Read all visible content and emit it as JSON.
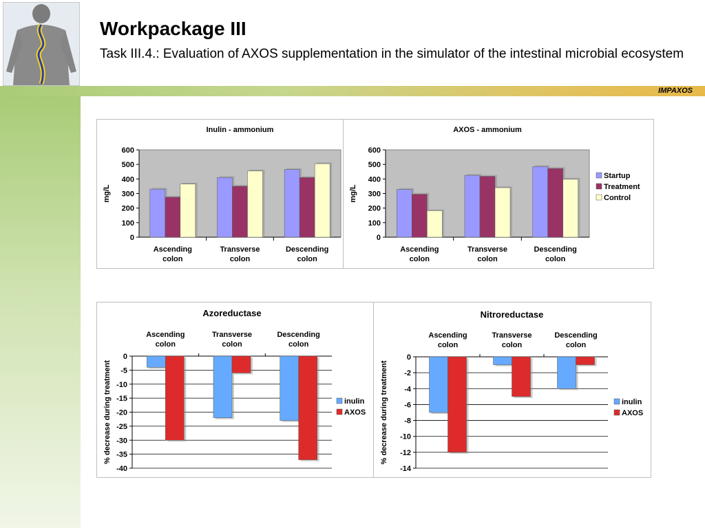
{
  "header": {
    "title": "Workpackage III",
    "subtitle": "Task III.4.: Evaluation of AXOS supplementation in the simulator of the intestinal microbial ecosystem",
    "bar_label": "IMPAXOS"
  },
  "colors": {
    "startup": "#9999ff",
    "treatment": "#993366",
    "control": "#ffffcc",
    "inulin": "#66aaff",
    "axos": "#dd2b2b",
    "plot_bg": "#c0c0c0",
    "bar_accent": "#a9cc77"
  },
  "chart_data": [
    {
      "type": "bar",
      "title": "Inulin - ammonium",
      "categories": [
        "Ascending colon",
        "Transverse colon",
        "Descending colon"
      ],
      "series": [
        {
          "name": "Startup",
          "values": [
            330,
            410,
            465
          ]
        },
        {
          "name": "Treatment",
          "values": [
            275,
            350,
            410
          ]
        },
        {
          "name": "Control",
          "values": [
            365,
            455,
            505
          ]
        }
      ],
      "xlabel": "",
      "ylabel": "mg/L",
      "ylim": [
        0,
        600
      ],
      "yticks": [
        0,
        100,
        200,
        300,
        400,
        500,
        600
      ],
      "grid": false,
      "legend": "none"
    },
    {
      "type": "bar",
      "title": "AXOS - ammonium",
      "categories": [
        "Ascending colon",
        "Transverse colon",
        "Descending colon"
      ],
      "series": [
        {
          "name": "Startup",
          "values": [
            328,
            425,
            485
          ]
        },
        {
          "name": "Treatment",
          "values": [
            295,
            418,
            472
          ]
        },
        {
          "name": "Control",
          "values": [
            182,
            340,
            398
          ]
        }
      ],
      "xlabel": "",
      "ylabel": "mg/L",
      "ylim": [
        0,
        600
      ],
      "yticks": [
        0,
        100,
        200,
        300,
        400,
        500,
        600
      ],
      "grid": false,
      "legend": "right"
    },
    {
      "type": "bar",
      "title": "Azoreductase",
      "categories": [
        "Ascending colon",
        "Transverse colon",
        "Descending colon"
      ],
      "series": [
        {
          "name": "inulin",
          "values": [
            -4,
            -22,
            -23
          ]
        },
        {
          "name": "AXOS",
          "values": [
            -30,
            -6,
            -37
          ]
        }
      ],
      "xlabel": "",
      "ylabel": "% decrease during treatment",
      "ylim": [
        -40,
        0
      ],
      "yticks": [
        0,
        -5,
        -10,
        -15,
        -20,
        -25,
        -30,
        -35,
        -40
      ],
      "grid": true,
      "legend": "right",
      "category_labels_position": "top"
    },
    {
      "type": "bar",
      "title": "Nitroreductase",
      "categories": [
        "Ascending colon",
        "Transverse colon",
        "Descending colon"
      ],
      "series": [
        {
          "name": "inulin",
          "values": [
            -7,
            -1,
            -4
          ]
        },
        {
          "name": "AXOS",
          "values": [
            -12,
            -5,
            -1
          ]
        }
      ],
      "xlabel": "",
      "ylabel": "% decrease during treatment",
      "ylim": [
        -14,
        0
      ],
      "yticks": [
        0,
        -2,
        -4,
        -6,
        -8,
        -10,
        -12,
        -14
      ],
      "grid": true,
      "legend": "right",
      "category_labels_position": "top"
    }
  ]
}
